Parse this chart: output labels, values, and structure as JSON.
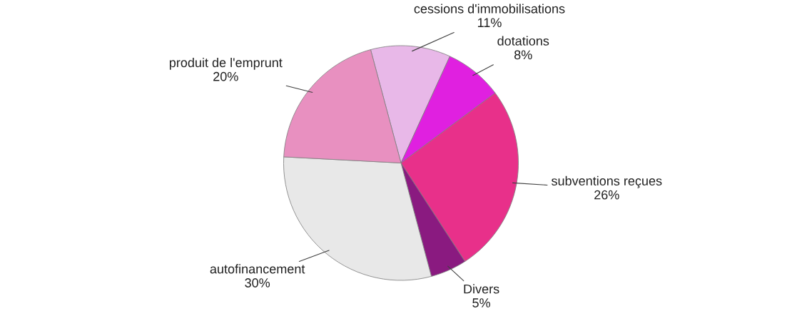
{
  "chart_data": {
    "type": "pie",
    "categories": [
      "cessions d'immobilisations",
      "dotations",
      "subventions reçues",
      "Divers",
      "autofinancement",
      "produit de l'emprunt"
    ],
    "values": [
      11,
      8,
      26,
      5,
      30,
      20
    ],
    "value_labels": [
      "11%",
      "8%",
      "26%",
      "5%",
      "30%",
      "20%"
    ],
    "colors": [
      "#e8b8e8",
      "#e020e0",
      "#e8308a",
      "#8a1a80",
      "#e8e8e8",
      "#e890c0"
    ],
    "legend": false
  }
}
